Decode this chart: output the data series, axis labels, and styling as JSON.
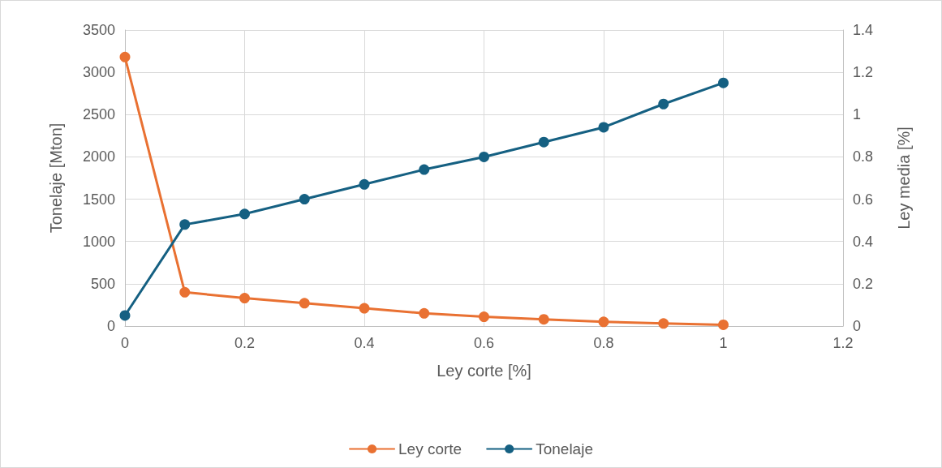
{
  "chart_data": {
    "type": "line",
    "xlabel": "Ley corte [%]",
    "ylabel": "Tonelaje [Mton]",
    "y2label": "Ley media [%]",
    "x": [
      0,
      0.1,
      0.2,
      0.3,
      0.4,
      0.5,
      0.6,
      0.7,
      0.8,
      0.9,
      1
    ],
    "series": [
      {
        "name": "Ley corte",
        "color": "#e97132",
        "values": [
          3180,
          400,
          330,
          270,
          210,
          150,
          110,
          80,
          50,
          30,
          15
        ]
      },
      {
        "name": "Tonelaje",
        "color": "#156082",
        "axis": "y2",
        "values": [
          0.05,
          0.48,
          0.53,
          0.6,
          0.67,
          0.74,
          0.8,
          0.87,
          0.94,
          1.05,
          1.15
        ]
      }
    ],
    "xlim": [
      0,
      1.2
    ],
    "xticks": [
      0,
      0.2,
      0.4,
      0.6,
      0.8,
      1,
      1.2
    ],
    "ylim": [
      0,
      3500
    ],
    "yticks": [
      0,
      500,
      1000,
      1500,
      2000,
      2500,
      3000,
      3500
    ],
    "y2lim": [
      0,
      1.4
    ],
    "y2ticks": [
      0,
      0.2,
      0.4,
      0.6,
      0.8,
      1,
      1.2,
      1.4
    ],
    "grid": true,
    "legend": "bottom",
    "marker": "circle",
    "line_style": "solid"
  }
}
